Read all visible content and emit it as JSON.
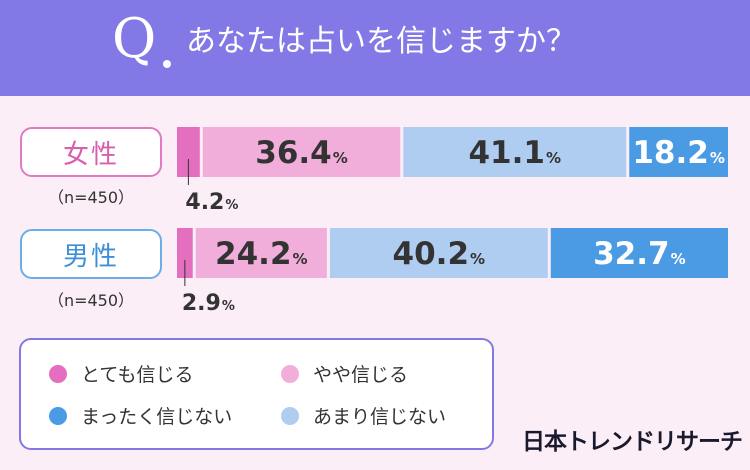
{
  "header": {
    "q_letter": "Q",
    "question": "あなたは占いを信じますか？"
  },
  "groups": [
    {
      "label": "女性",
      "n": "（n=450）"
    },
    {
      "label": "男性",
      "n": "（n=450）"
    }
  ],
  "chart_data": {
    "type": "bar",
    "stacked": true,
    "orientation": "horizontal",
    "categories": [
      "女性",
      "男性"
    ],
    "series": [
      {
        "name": "とても信じる",
        "values": [
          4.2,
          2.9
        ],
        "color": "#e36fbe"
      },
      {
        "name": "やや信じる",
        "values": [
          36.4,
          24.2
        ],
        "color": "#f2aedb"
      },
      {
        "name": "あまり信じない",
        "values": [
          41.1,
          40.2
        ],
        "color": "#aecdf0"
      },
      {
        "name": "まったく信じない",
        "values": [
          18.2,
          32.7
        ],
        "color": "#4a9be3"
      }
    ],
    "unit": "%"
  },
  "legend": [
    {
      "label": "とても信じる",
      "color": "#e36fbe"
    },
    {
      "label": "やや信じる",
      "color": "#f2aedb"
    },
    {
      "label": "まったく信じない",
      "color": "#4a9be3"
    },
    {
      "label": "あまり信じない",
      "color": "#aecdf0"
    }
  ],
  "logo": "日本トレンドリサーチ"
}
